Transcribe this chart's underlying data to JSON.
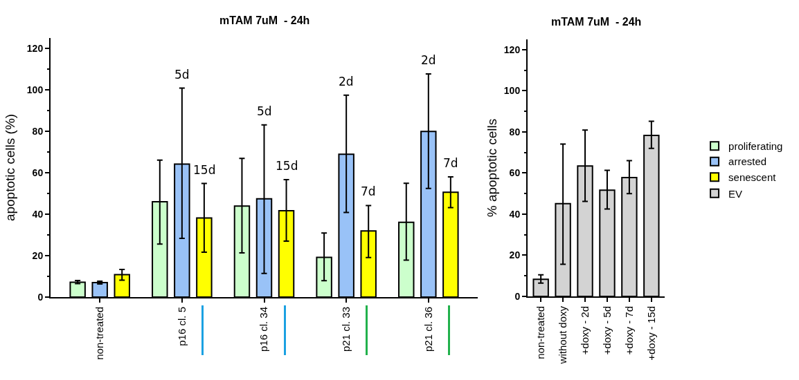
{
  "chart_data": [
    {
      "type": "bar",
      "title": "mTAM 7uM  - 24h",
      "ylabel": "apoptotic cells (%)",
      "categories": [
        "non-treated",
        "p16 cl. 5",
        "p16 cl. 34",
        "p21 cl. 33",
        "p21 cl. 36"
      ],
      "series": [
        {
          "name": "proliferating",
          "color": "#ccffcc",
          "values": [
            7.2,
            46,
            43.9,
            19.2,
            36.1
          ],
          "errors": [
            [
              6.5,
              8
            ],
            [
              25.6,
              66.1
            ],
            [
              21.3,
              66.9
            ],
            [
              7.9,
              30.9
            ],
            [
              17.8,
              54.9
            ]
          ]
        },
        {
          "name": "arrested",
          "color": "#99c2f7",
          "values": [
            7,
            64.2,
            47.4,
            68.9,
            79.9
          ],
          "errors": [
            [
              6.3,
              7.7
            ],
            [
              28.3,
              100.8
            ],
            [
              11.4,
              83.1
            ],
            [
              40.8,
              97.4
            ],
            [
              52.4,
              107.7
            ]
          ]
        },
        {
          "name": "senescent",
          "color": "#ffff00",
          "values": [
            10.8,
            38.2,
            41.7,
            31.9,
            50.6
          ],
          "errors": [
            [
              8.2,
              13.3
            ],
            [
              21.7,
              54.8
            ],
            [
              27,
              56.7
            ],
            [
              19.1,
              44.2
            ],
            [
              43.2,
              58
            ]
          ]
        }
      ],
      "annotations": [
        {
          "text": "5d",
          "x": "p16 cl. 5",
          "y": 100.8
        },
        {
          "text": "15d",
          "x": "p16 cl. 5",
          "y": 54.8
        },
        {
          "text": "5d",
          "x": "p16 cl. 34",
          "y": 83.1
        },
        {
          "text": "15d",
          "x": "p16 cl. 34",
          "y": 56.7
        },
        {
          "text": "2d",
          "x": "p21 cl. 33",
          "y": 97.4
        },
        {
          "text": "7d",
          "x": "p21 cl. 33",
          "y": 44.2
        },
        {
          "text": "2d",
          "x": "p21 cl. 36",
          "y": 107.7
        },
        {
          "text": "7d",
          "x": "p21 cl. 36",
          "y": 58
        }
      ],
      "ylim": [
        0,
        125
      ],
      "yticks": [
        0,
        20,
        40,
        60,
        80,
        100,
        120
      ],
      "grid": false,
      "legend": "right"
    },
    {
      "type": "bar",
      "title": "mTAM 7uM  - 24h",
      "ylabel": "% apoptotic cells",
      "categories": [
        "non-treated",
        "without doxy",
        "+doxy - 2d",
        "+doxy - 5d",
        "+doxy - 7d",
        "+doxy - 15d"
      ],
      "series": [
        {
          "name": "EV",
          "color": "#d3d3d3",
          "values": [
            8.3,
            45.1,
            63.4,
            51.7,
            57.8,
            78.3
          ],
          "errors": [
            [
              6.5,
              10.5
            ],
            [
              15.6,
              74.1
            ],
            [
              46.2,
              80.9
            ],
            [
              42.5,
              61.3
            ],
            [
              50,
              66
            ],
            [
              72,
              85.2
            ]
          ]
        }
      ],
      "ylim": [
        0,
        125
      ],
      "yticks": [
        0,
        20,
        40,
        60,
        80,
        100,
        120
      ],
      "grid": false,
      "legend": "right"
    }
  ]
}
